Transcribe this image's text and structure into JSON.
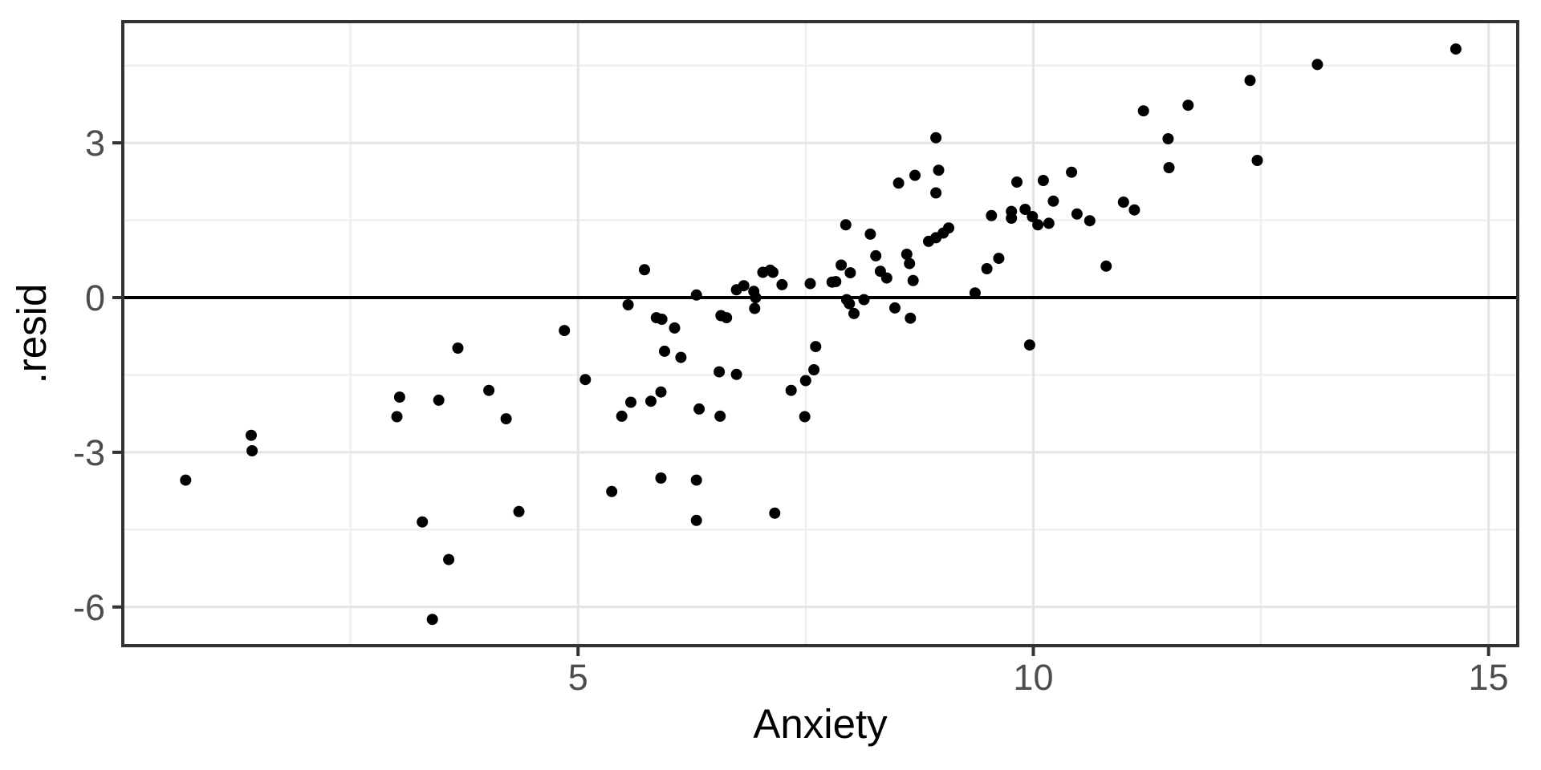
{
  "chart_data": {
    "type": "scatter",
    "title": "",
    "xlabel": "Anxiety",
    "ylabel": ".resid",
    "xlim": [
      0,
      15.32
    ],
    "ylim": [
      -6.75,
      5.35
    ],
    "x_major_ticks": [
      5,
      10,
      15
    ],
    "x_tick_labels": [
      "5",
      "10",
      "15"
    ],
    "x_minor_gridlines": [
      2.5,
      7.5,
      12.5
    ],
    "y_major_ticks": [
      3,
      0,
      -3,
      -6
    ],
    "y_tick_labels": [
      "3",
      "0",
      "-3",
      "-6"
    ],
    "y_minor_gridlines": [
      4.5,
      1.5,
      -1.5,
      -4.5
    ],
    "reference_line_y": 0,
    "grid": "on",
    "legend": "none",
    "point_radius": 7,
    "points": [
      [
        0.69,
        -3.54
      ],
      [
        1.41,
        -2.67
      ],
      [
        1.42,
        -2.97
      ],
      [
        3.01,
        -2.31
      ],
      [
        3.04,
        -1.93
      ],
      [
        3.29,
        -4.35
      ],
      [
        3.4,
        -6.24
      ],
      [
        3.47,
        -1.99
      ],
      [
        3.58,
        -5.08
      ],
      [
        3.68,
        -0.98
      ],
      [
        4.02,
        -1.8
      ],
      [
        4.21,
        -2.35
      ],
      [
        4.35,
        -4.15
      ],
      [
        4.85,
        -0.64
      ],
      [
        5.08,
        -1.59
      ],
      [
        5.37,
        -3.76
      ],
      [
        5.48,
        -2.3
      ],
      [
        5.55,
        -0.14
      ],
      [
        5.58,
        -2.03
      ],
      [
        5.73,
        0.54
      ],
      [
        5.8,
        -2.01
      ],
      [
        5.86,
        -0.39
      ],
      [
        5.91,
        -1.83
      ],
      [
        5.91,
        -3.5
      ],
      [
        5.92,
        -0.42
      ],
      [
        5.95,
        -1.04
      ],
      [
        6.06,
        -0.59
      ],
      [
        6.13,
        -1.16
      ],
      [
        6.3,
        0.05
      ],
      [
        6.3,
        -3.54
      ],
      [
        6.3,
        -4.32
      ],
      [
        6.33,
        -2.16
      ],
      [
        6.55,
        -1.44
      ],
      [
        6.56,
        -2.3
      ],
      [
        6.57,
        -0.35
      ],
      [
        6.63,
        -0.39
      ],
      [
        6.74,
        0.15
      ],
      [
        6.74,
        -1.49
      ],
      [
        6.82,
        0.23
      ],
      [
        6.93,
        0.12
      ],
      [
        6.94,
        -0.21
      ],
      [
        6.95,
        0.0
      ],
      [
        7.03,
        0.49
      ],
      [
        7.11,
        0.53
      ],
      [
        7.14,
        0.49
      ],
      [
        7.16,
        -4.18
      ],
      [
        7.24,
        0.25
      ],
      [
        7.34,
        -1.8
      ],
      [
        7.49,
        -2.31
      ],
      [
        7.5,
        -1.61
      ],
      [
        7.55,
        0.27
      ],
      [
        7.59,
        -1.4
      ],
      [
        7.61,
        -0.95
      ],
      [
        7.79,
        0.3
      ],
      [
        7.83,
        0.31
      ],
      [
        7.89,
        0.63
      ],
      [
        7.94,
        1.41
      ],
      [
        7.95,
        -0.04
      ],
      [
        7.98,
        -0.12
      ],
      [
        7.99,
        0.48
      ],
      [
        8.03,
        -0.31
      ],
      [
        8.14,
        -0.04
      ],
      [
        8.21,
        1.23
      ],
      [
        8.27,
        0.81
      ],
      [
        8.32,
        0.51
      ],
      [
        8.39,
        0.38
      ],
      [
        8.48,
        -0.2
      ],
      [
        8.52,
        2.22
      ],
      [
        8.61,
        0.84
      ],
      [
        8.64,
        0.66
      ],
      [
        8.65,
        -0.4
      ],
      [
        8.68,
        0.33
      ],
      [
        8.7,
        2.37
      ],
      [
        8.85,
        1.09
      ],
      [
        8.93,
        1.16
      ],
      [
        8.93,
        2.03
      ],
      [
        8.93,
        3.1
      ],
      [
        8.96,
        2.47
      ],
      [
        9.01,
        1.25
      ],
      [
        9.07,
        1.35
      ],
      [
        9.36,
        0.09
      ],
      [
        9.49,
        0.56
      ],
      [
        9.54,
        1.59
      ],
      [
        9.62,
        0.76
      ],
      [
        9.76,
        1.67
      ],
      [
        9.76,
        1.54
      ],
      [
        9.82,
        2.24
      ],
      [
        9.91,
        1.71
      ],
      [
        9.96,
        -0.92
      ],
      [
        9.99,
        1.57
      ],
      [
        10.05,
        1.41
      ],
      [
        10.11,
        2.27
      ],
      [
        10.17,
        1.44
      ],
      [
        10.22,
        1.87
      ],
      [
        10.42,
        2.43
      ],
      [
        10.48,
        1.62
      ],
      [
        10.62,
        1.49
      ],
      [
        10.8,
        0.61
      ],
      [
        10.99,
        1.85
      ],
      [
        11.11,
        1.7
      ],
      [
        11.21,
        3.62
      ],
      [
        11.48,
        3.08
      ],
      [
        11.49,
        2.52
      ],
      [
        11.7,
        3.73
      ],
      [
        12.38,
        4.21
      ],
      [
        12.46,
        2.66
      ],
      [
        13.12,
        4.52
      ],
      [
        14.64,
        4.82
      ]
    ]
  },
  "style": {
    "background": "#FFFFFF",
    "panel_background": "#FFFFFF",
    "panel_border": "#333333",
    "grid_major": "#E4E4E4",
    "grid_minor": "#EFEFEF",
    "zero_line": "#000000",
    "point_color": "#000000",
    "tick_color": "#333333",
    "tick_label_color": "#4D4D4D",
    "axis_title_color": "#000000"
  }
}
